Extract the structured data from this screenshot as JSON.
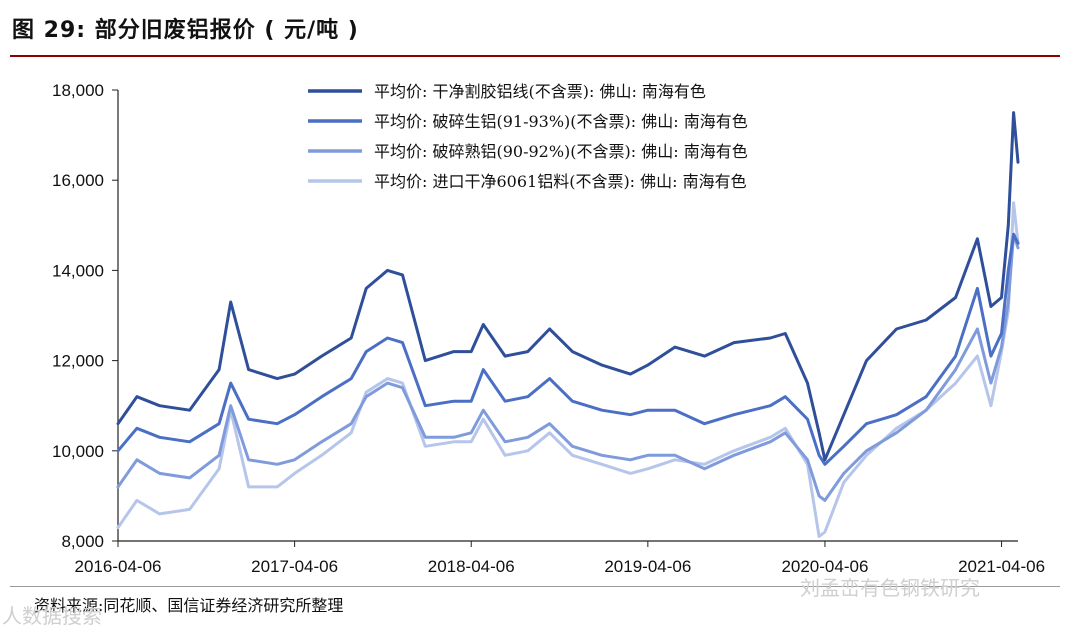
{
  "header": {
    "title": "图 29:  部分旧废铝报价 ( 元/吨 )"
  },
  "footer": {
    "source": "资料来源:同花顺、国信证券经济研究所整理"
  },
  "watermarks": {
    "left": "人数据搜索",
    "right": "刘孟峦有色钢铁研究"
  },
  "colors": {
    "axis": "#222222",
    "series": [
      "#2f4f9a",
      "#4a6fc4",
      "#7f9bdc",
      "#b6c5ea"
    ]
  },
  "chart_data": {
    "type": "line",
    "title": "",
    "xlabel": "",
    "ylabel": "",
    "ylim": [
      8000,
      18000
    ],
    "yticks": [
      8000,
      10000,
      12000,
      14000,
      16000,
      18000
    ],
    "ytick_labels": [
      "8,000",
      "10,000",
      "12,000",
      "14,000",
      "16,000",
      "18,000"
    ],
    "xlim": [
      "2016-04-06",
      "2021-05-10"
    ],
    "xticks": [
      "2016-04-06",
      "2017-04-06",
      "2018-04-06",
      "2019-04-06",
      "2020-04-06",
      "2021-04-06"
    ],
    "grid": false,
    "legend_position": "top-center",
    "series": [
      {
        "name": "平均价: 干净割胶铝线(不含票): 佛山: 南海有色",
        "x": [
          "2016-04-06",
          "2016-05-15",
          "2016-07-01",
          "2016-09-01",
          "2016-11-01",
          "2016-11-25",
          "2017-01-01",
          "2017-03-01",
          "2017-04-06",
          "2017-06-01",
          "2017-08-01",
          "2017-09-01",
          "2017-10-15",
          "2017-11-15",
          "2018-01-01",
          "2018-03-01",
          "2018-04-06",
          "2018-05-01",
          "2018-06-15",
          "2018-08-01",
          "2018-09-15",
          "2018-11-01",
          "2019-01-01",
          "2019-03-01",
          "2019-04-06",
          "2019-06-01",
          "2019-08-01",
          "2019-10-01",
          "2019-12-15",
          "2020-01-15",
          "2020-03-01",
          "2020-03-25",
          "2020-04-06",
          "2020-05-15",
          "2020-07-01",
          "2020-09-01",
          "2020-11-01",
          "2021-01-01",
          "2021-02-15",
          "2021-03-15",
          "2021-04-06",
          "2021-04-20",
          "2021-05-01",
          "2021-05-10"
        ],
        "y": [
          10600,
          11200,
          11000,
          10900,
          11800,
          13300,
          11800,
          11600,
          11700,
          12100,
          12500,
          13600,
          14000,
          13900,
          12000,
          12200,
          12200,
          12800,
          12100,
          12200,
          12700,
          12200,
          11900,
          11700,
          11900,
          12300,
          12100,
          12400,
          12500,
          12600,
          11500,
          10400,
          9800,
          10800,
          12000,
          12700,
          12900,
          13400,
          14700,
          13200,
          13400,
          15000,
          17500,
          16400
        ]
      },
      {
        "name": "平均价: 破碎生铝(91-93%)(不含票): 佛山: 南海有色",
        "x": [
          "2016-04-06",
          "2016-05-15",
          "2016-07-01",
          "2016-09-01",
          "2016-11-01",
          "2016-11-25",
          "2017-01-01",
          "2017-03-01",
          "2017-04-06",
          "2017-06-01",
          "2017-08-01",
          "2017-09-01",
          "2017-10-15",
          "2017-11-15",
          "2018-01-01",
          "2018-03-01",
          "2018-04-06",
          "2018-05-01",
          "2018-06-15",
          "2018-08-01",
          "2018-09-15",
          "2018-11-01",
          "2019-01-01",
          "2019-03-01",
          "2019-04-06",
          "2019-06-01",
          "2019-08-01",
          "2019-10-01",
          "2019-12-15",
          "2020-01-15",
          "2020-03-01",
          "2020-03-25",
          "2020-04-06",
          "2020-05-15",
          "2020-07-01",
          "2020-09-01",
          "2020-11-01",
          "2021-01-01",
          "2021-02-15",
          "2021-03-15",
          "2021-04-06",
          "2021-04-20",
          "2021-05-01",
          "2021-05-10"
        ],
        "y": [
          10000,
          10500,
          10300,
          10200,
          10600,
          11500,
          10700,
          10600,
          10800,
          11200,
          11600,
          12200,
          12500,
          12400,
          11000,
          11100,
          11100,
          11800,
          11100,
          11200,
          11600,
          11100,
          10900,
          10800,
          10900,
          10900,
          10600,
          10800,
          11000,
          11200,
          10700,
          9900,
          9700,
          10100,
          10600,
          10800,
          11200,
          12100,
          13600,
          12100,
          12600,
          14000,
          14800,
          14600
        ]
      },
      {
        "name": "平均价: 破碎熟铝(90-92%)(不含票): 佛山: 南海有色",
        "x": [
          "2016-04-06",
          "2016-05-15",
          "2016-07-01",
          "2016-09-01",
          "2016-11-01",
          "2016-11-25",
          "2017-01-01",
          "2017-03-01",
          "2017-04-06",
          "2017-06-01",
          "2017-08-01",
          "2017-09-01",
          "2017-10-15",
          "2017-11-15",
          "2018-01-01",
          "2018-03-01",
          "2018-04-06",
          "2018-05-01",
          "2018-06-15",
          "2018-08-01",
          "2018-09-15",
          "2018-11-01",
          "2019-01-01",
          "2019-03-01",
          "2019-04-06",
          "2019-06-01",
          "2019-08-01",
          "2019-10-01",
          "2019-12-15",
          "2020-01-15",
          "2020-03-01",
          "2020-03-25",
          "2020-04-06",
          "2020-05-15",
          "2020-07-01",
          "2020-09-01",
          "2020-11-01",
          "2021-01-01",
          "2021-02-15",
          "2021-03-15",
          "2021-04-06",
          "2021-04-20",
          "2021-05-01",
          "2021-05-10"
        ],
        "y": [
          9200,
          9800,
          9500,
          9400,
          9900,
          11000,
          9800,
          9700,
          9800,
          10200,
          10600,
          11200,
          11500,
          11400,
          10300,
          10300,
          10400,
          10900,
          10200,
          10300,
          10600,
          10100,
          9900,
          9800,
          9900,
          9900,
          9600,
          9900,
          10200,
          10400,
          9800,
          9000,
          8900,
          9500,
          10000,
          10400,
          10900,
          11800,
          12700,
          11500,
          12300,
          13300,
          14800,
          14500
        ]
      },
      {
        "name": "平均价: 进口干净6061铝料(不含票): 佛山: 南海有色",
        "x": [
          "2016-04-06",
          "2016-05-15",
          "2016-07-01",
          "2016-09-01",
          "2016-11-01",
          "2016-11-25",
          "2017-01-01",
          "2017-03-01",
          "2017-04-06",
          "2017-06-01",
          "2017-08-01",
          "2017-09-01",
          "2017-10-15",
          "2017-11-15",
          "2018-01-01",
          "2018-03-01",
          "2018-04-06",
          "2018-05-01",
          "2018-06-15",
          "2018-08-01",
          "2018-09-15",
          "2018-11-01",
          "2019-01-01",
          "2019-03-01",
          "2019-04-06",
          "2019-06-01",
          "2019-08-01",
          "2019-10-01",
          "2019-12-15",
          "2020-01-15",
          "2020-03-01",
          "2020-03-25",
          "2020-04-06",
          "2020-05-15",
          "2020-07-01",
          "2020-09-01",
          "2020-11-01",
          "2021-01-01",
          "2021-02-15",
          "2021-03-15",
          "2021-04-06",
          "2021-04-20",
          "2021-05-01",
          "2021-05-10"
        ],
        "y": [
          8300,
          8900,
          8600,
          8700,
          9600,
          10900,
          9200,
          9200,
          9500,
          9900,
          10400,
          11300,
          11600,
          11500,
          10100,
          10200,
          10200,
          10700,
          9900,
          10000,
          10400,
          9900,
          9700,
          9500,
          9600,
          9800,
          9700,
          10000,
          10300,
          10500,
          9700,
          8100,
          8200,
          9300,
          9900,
          10500,
          10900,
          11500,
          12100,
          11000,
          12200,
          13100,
          15500,
          14600
        ]
      }
    ]
  }
}
